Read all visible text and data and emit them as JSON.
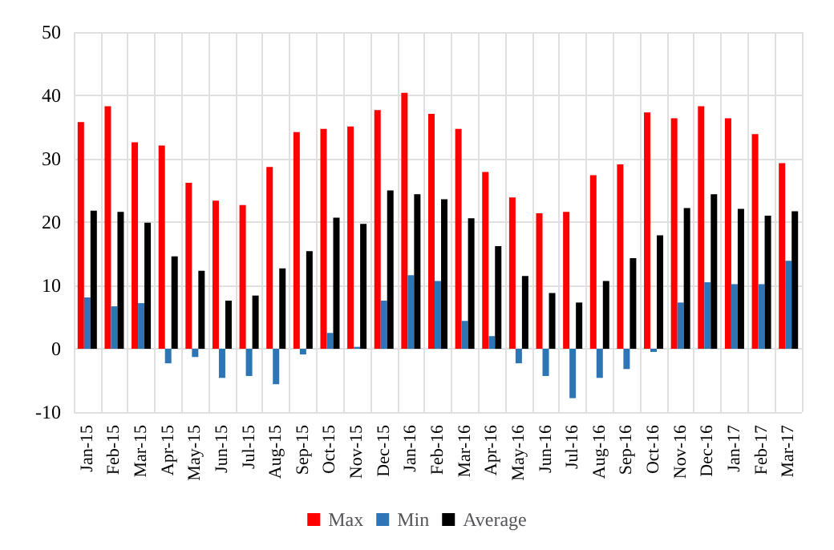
{
  "chart_data": {
    "type": "bar",
    "categories": [
      "Jan-15",
      "Feb-15",
      "Mar-15",
      "Apr-15",
      "May-15",
      "Jun-15",
      "Jul-15",
      "Aug-15",
      "Sep-15",
      "Oct-15",
      "Nov-15",
      "Dec-15",
      "Jan-16",
      "Feb-16",
      "Mar-16",
      "Apr-16",
      "May-16",
      "Jun-16",
      "Jul-16",
      "Aug-16",
      "Sep-16",
      "Oct-16",
      "Nov-16",
      "Dec-16",
      "Jan-17",
      "Feb-17",
      "Mar-17"
    ],
    "series": [
      {
        "name": "Max",
        "color": "#ff0000",
        "values": [
          35.8,
          38.3,
          32.6,
          32.1,
          26.2,
          23.4,
          22.7,
          28.7,
          34.2,
          34.7,
          35.1,
          37.7,
          40.4,
          37.1,
          34.7,
          27.9,
          23.9,
          21.4,
          21.6,
          27.4,
          29.1,
          37.3,
          36.4,
          38.3,
          36.4,
          33.9,
          29.3
        ]
      },
      {
        "name": "Min",
        "color": "#2e75b6",
        "values": [
          8.1,
          6.7,
          7.2,
          -2.3,
          -1.3,
          -4.6,
          -4.3,
          -5.6,
          -0.9,
          2.5,
          0.3,
          7.6,
          11.6,
          10.7,
          4.4,
          2.0,
          -2.3,
          -4.3,
          -7.8,
          -4.6,
          -3.2,
          -0.5,
          7.3,
          10.5,
          10.2,
          10.2,
          13.9
        ]
      },
      {
        "name": "Average",
        "color": "#000000",
        "values": [
          21.8,
          21.6,
          19.9,
          14.6,
          12.3,
          7.6,
          8.4,
          12.7,
          15.4,
          20.7,
          19.7,
          25.0,
          24.4,
          23.6,
          20.6,
          16.2,
          11.5,
          8.8,
          7.3,
          10.7,
          14.3,
          17.9,
          22.2,
          24.4,
          22.1,
          21.0,
          21.7
        ]
      }
    ],
    "ylim": [
      -10,
      50
    ],
    "yticks": [
      -10,
      0,
      10,
      20,
      30,
      40,
      50
    ],
    "grid": true,
    "legend": "bottom"
  }
}
